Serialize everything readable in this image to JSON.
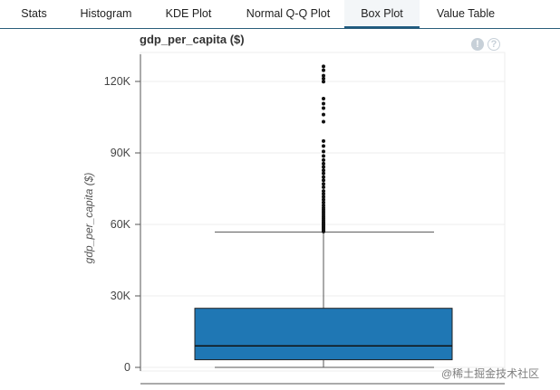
{
  "tabs": [
    {
      "label": "Stats"
    },
    {
      "label": "Histogram"
    },
    {
      "label": "KDE Plot"
    },
    {
      "label": "Normal Q-Q Plot"
    },
    {
      "label": "Box Plot",
      "active": true
    },
    {
      "label": "Value Table"
    }
  ],
  "plot": {
    "title": "gdp_per_capita ($)"
  },
  "icons": {
    "info": "exclamation-circle-icon",
    "help": "question-circle-icon"
  },
  "watermark": "@稀土掘金技术社区",
  "chart_data": {
    "type": "box",
    "ylabel": "gdp_per_capita ($)",
    "ylim": [
      -2000,
      130000
    ],
    "yticks": [
      0,
      30000,
      60000,
      90000,
      120000
    ],
    "ytick_labels": [
      "0",
      "30K",
      "60K",
      "90K",
      "120K"
    ],
    "box": {
      "whisker_low": 0,
      "q1": 3200,
      "median": 9000,
      "q3": 24800,
      "whisker_high": 56800,
      "color": "#1f77b4"
    },
    "outliers": [
      57000,
      57600,
      58200,
      58800,
      59300,
      59900,
      60500,
      61100,
      61800,
      62600,
      63400,
      64300,
      65200,
      66100,
      67000,
      68000,
      69200,
      70400,
      71600,
      72800,
      74000,
      75600,
      77000,
      78500,
      79900,
      81400,
      82700,
      84100,
      85500,
      87000,
      88700,
      90600,
      92900,
      95000,
      103100,
      106100,
      108800,
      110700,
      112800,
      119900,
      121200,
      122400,
      124700,
      126300
    ]
  }
}
